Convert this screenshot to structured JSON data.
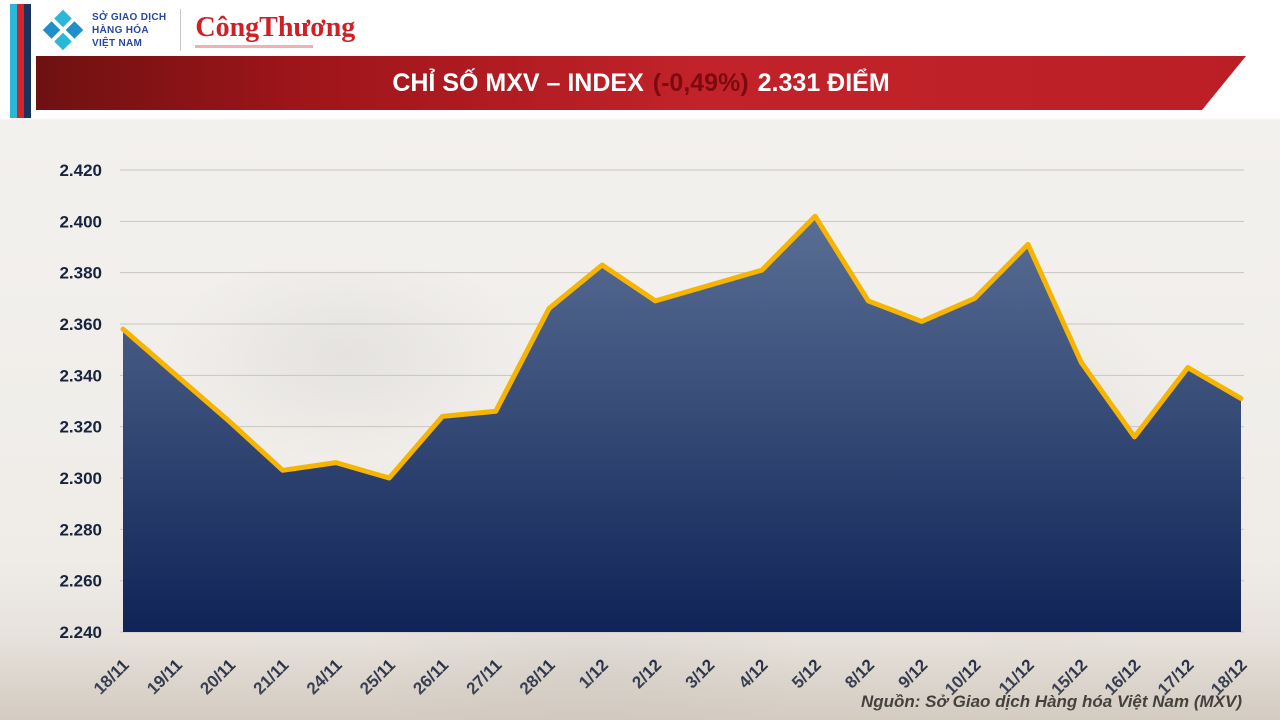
{
  "header": {
    "mxv_org": [
      "SỞ GIAO DỊCH",
      "HÀNG HÓA",
      "VIỆT NAM"
    ],
    "congthuong": "CôngThương"
  },
  "banner": {
    "title": "CHỈ SỐ MXV – INDEX",
    "change": "(-0,49%)",
    "value": "2.331 ĐIỂM"
  },
  "chart_data": {
    "type": "area",
    "title": "CHỈ SỐ MXV – INDEX (-0,49%) 2.331 ĐIỂM",
    "categories": [
      "18/11",
      "19/11",
      "20/11",
      "21/11",
      "24/11",
      "25/11",
      "26/11",
      "27/11",
      "28/11",
      "1/12",
      "2/12",
      "3/12",
      "4/12",
      "5/12",
      "8/12",
      "9/12",
      "10/12",
      "11/12",
      "15/12",
      "16/12",
      "17/12",
      "18/12"
    ],
    "values": [
      2.358,
      2.34,
      2.322,
      2.303,
      2.306,
      2.3,
      2.324,
      2.326,
      2.366,
      2.383,
      2.369,
      2.375,
      2.381,
      2.402,
      2.369,
      2.361,
      2.37,
      2.391,
      2.345,
      2.316,
      2.343,
      2.331
    ],
    "ylim": [
      2.24,
      2.42
    ],
    "ytick_labels": [
      "2.420",
      "2.400",
      "2.380",
      "2.360",
      "2.340",
      "2.320",
      "2.300",
      "2.280",
      "2.260",
      "2.240"
    ],
    "xlabel": "",
    "ylabel": "",
    "grid": "horizontal",
    "legend": "none",
    "colors": {
      "line": "#f7b500",
      "fill_top": "#5a6f94",
      "fill_bottom": "#0f2357",
      "grid": "#c9c6c2",
      "banner_red": "#c2232a",
      "accent_cyan": "#2ab7d8",
      "accent_navy": "#17335e"
    }
  },
  "footer": {
    "source": "Nguồn: Sở Giao dịch Hàng hóa Việt Nam (MXV)"
  }
}
